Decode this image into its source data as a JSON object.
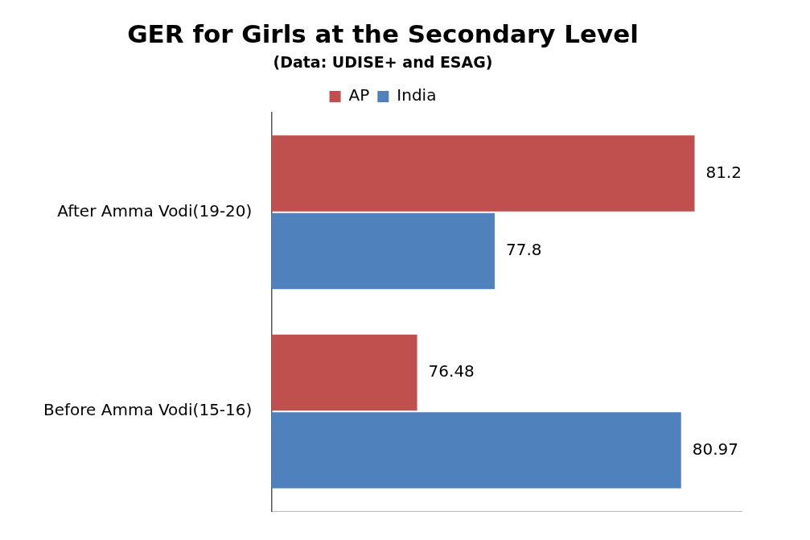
{
  "chart_data": {
    "type": "bar",
    "orientation": "horizontal",
    "title": "GER for Girls at the Secondary Level",
    "subtitle": "(Data: UDISE+ and ESAG)",
    "categories": [
      "After Amma Vodi(19-20)",
      "Before Amma Vodi(15-16)"
    ],
    "series": [
      {
        "name": "AP",
        "color": "#c0504d",
        "values": [
          81.2,
          76.48
        ]
      },
      {
        "name": "India",
        "color": "#4f81bd",
        "values": [
          77.8,
          80.97
        ]
      }
    ],
    "xlim": [
      74,
      82
    ],
    "tick_labels": "y",
    "data_labels": true,
    "legend": "top",
    "grid": false
  }
}
